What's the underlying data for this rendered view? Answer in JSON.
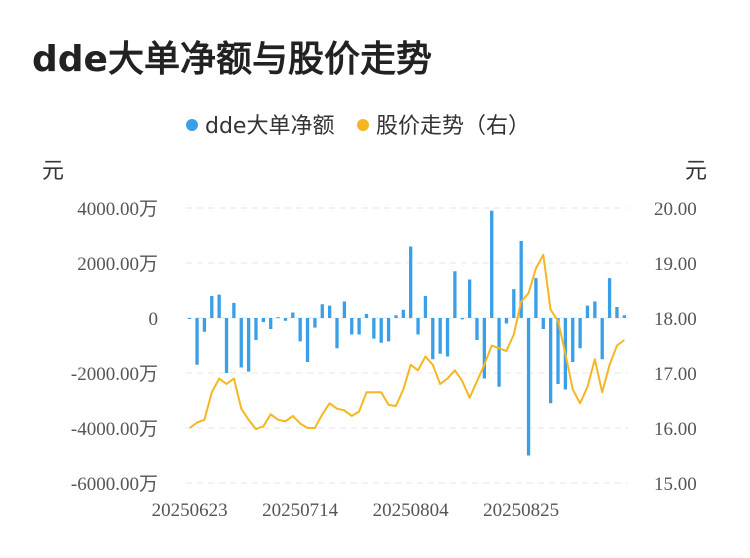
{
  "title": "dde大单净额与股价走势",
  "colors": {
    "bar": "#3a9fe6",
    "line": "#f5b622",
    "grid": "#e6e6e6"
  },
  "chart_data": {
    "type": "bar+line",
    "title": "dde大单净额与股价走势",
    "legend": [
      {
        "name": "dde大单净额",
        "color": "#3a9fe6"
      },
      {
        "name": "股价走势（右）",
        "color": "#f5b622"
      }
    ],
    "left_unit": "元",
    "right_unit": "元",
    "y_left": {
      "ticks": [
        4000,
        2000,
        0,
        -2000,
        -4000,
        -6000
      ],
      "tick_labels": [
        "4000.00万",
        "2000.00万",
        "0",
        "-2000.00万",
        "-4000.00万",
        "-6000.00万"
      ],
      "range": [
        -6000,
        4000
      ]
    },
    "y_right": {
      "ticks": [
        20,
        19,
        18,
        17,
        16,
        15
      ],
      "tick_labels": [
        "20.00",
        "19.00",
        "18.00",
        "17.00",
        "16.00",
        "15.00"
      ],
      "range": [
        15,
        20
      ]
    },
    "x_tick_labels": [
      {
        "index": 0,
        "label": "20250623"
      },
      {
        "index": 15,
        "label": "20250714"
      },
      {
        "index": 30,
        "label": "20250804"
      },
      {
        "index": 45,
        "label": "20250825"
      }
    ],
    "bar_values": [
      -30,
      -1700,
      -500,
      800,
      850,
      -2000,
      550,
      -1800,
      -1950,
      -800,
      -150,
      -400,
      30,
      -100,
      200,
      -850,
      -1600,
      -350,
      500,
      450,
      -1100,
      600,
      -600,
      -600,
      150,
      -750,
      -900,
      -850,
      100,
      300,
      2600,
      -600,
      800,
      -1500,
      -1300,
      -1400,
      1700,
      -50,
      1400,
      -800,
      -2200,
      3900,
      -2500,
      -200,
      1050,
      2800,
      -5000,
      1450,
      -400,
      -3100,
      -2400,
      -2600,
      -1600,
      -1100,
      450,
      600,
      -1500,
      1450,
      400,
      100
    ],
    "line_values": [
      16.0,
      16.1,
      16.15,
      16.65,
      16.9,
      16.8,
      16.9,
      16.35,
      16.15,
      15.98,
      16.03,
      16.25,
      16.15,
      16.12,
      16.22,
      16.08,
      16.0,
      16.0,
      16.25,
      16.45,
      16.35,
      16.32,
      16.22,
      16.3,
      16.65,
      16.65,
      16.65,
      16.42,
      16.4,
      16.7,
      17.15,
      17.05,
      17.3,
      17.15,
      16.8,
      16.9,
      17.05,
      16.85,
      16.55,
      16.85,
      17.15,
      17.5,
      17.45,
      17.4,
      17.7,
      18.3,
      18.45,
      18.9,
      19.15,
      18.15,
      17.95,
      17.35,
      16.7,
      16.45,
      16.75,
      17.25,
      16.65,
      17.15,
      17.5,
      17.6
    ]
  }
}
